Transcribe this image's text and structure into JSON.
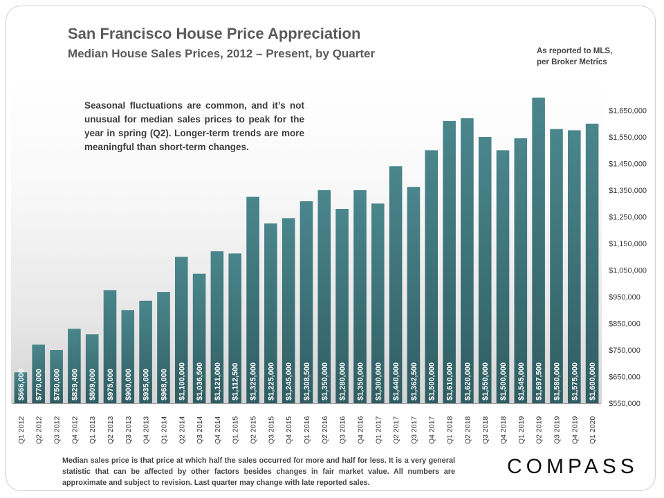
{
  "header": {
    "title": "San Francisco House Price Appreciation",
    "subtitle": "Median House Sales Prices, 2012 – Present, by Quarter",
    "source_line1": "As reported to MLS,",
    "source_line2": "per Broker Metrics"
  },
  "annotation": "Seasonal fluctuations are common, and it’s not unusual for median sales prices to peak for the year in spring (Q2). Longer-term trends are more meaningful than short-term changes.",
  "footnote": "Median sales price is that price at which half the sales occurred for more and half for less. It is a very general statistic that can be affected by other factors besides changes in fair market value. All numbers are approximate and subject to revision. Last quarter may change with late reported sales.",
  "brand": {
    "logo_text": "COMPASS"
  },
  "colors": {
    "bar": "#4a868c",
    "bar_dark": "#2f5d62",
    "label_text": "#ffffff",
    "axis_text": "#333333"
  },
  "chart_data": {
    "type": "bar",
    "title": "San Francisco House Price Appreciation",
    "subtitle": "Median House Sales Prices, 2012 – Present, by Quarter",
    "xlabel": "",
    "ylabel": "",
    "ylim": [
      550000,
      1750000
    ],
    "yticks": [
      550000,
      650000,
      750000,
      850000,
      950000,
      1050000,
      1150000,
      1250000,
      1350000,
      1450000,
      1550000,
      1650000
    ],
    "ytick_labels": [
      "$550,000",
      "$650,000",
      "$750,000",
      "$850,000",
      "$950,000",
      "$1,050,000",
      "$1,150,000",
      "$1,250,000",
      "$1,350,000",
      "$1,450,000",
      "$1,550,000",
      "$1,650,000"
    ],
    "grid": false,
    "categories": [
      "Q1 2012",
      "Q2 2012",
      "Q3 2012",
      "Q4 2012",
      "Q1 2013",
      "Q2 2013",
      "Q3 2013",
      "Q4 2013",
      "Q1 2014",
      "Q2 2014",
      "Q3 2014",
      "Q4 2014",
      "Q1 2015",
      "Q2 2015",
      "Q3 2015",
      "Q4 2015",
      "Q1 2016",
      "Q2 2016",
      "Q3 2016",
      "Q4 2016",
      "Q1 2017",
      "Q2 2017",
      "Q3 2017",
      "Q4 2017",
      "Q1 2018",
      "Q2 2018",
      "Q3 2018",
      "Q4 2018",
      "Q1 2019",
      "Q2 2019",
      "Q3 2019",
      "Q4 2019",
      "Q1 2020"
    ],
    "values": [
      666000,
      770000,
      750000,
      829400,
      809000,
      975000,
      900000,
      935000,
      968000,
      1100000,
      1036500,
      1121000,
      1112500,
      1325000,
      1225000,
      1245000,
      1308500,
      1350000,
      1280000,
      1350000,
      1300000,
      1440000,
      1362500,
      1500000,
      1610000,
      1620000,
      1550000,
      1500000,
      1545000,
      1697500,
      1580000,
      1575000,
      1600000
    ],
    "value_labels": [
      "$666,000",
      "$770,000",
      "$750,000",
      "$829,400",
      "$809,000",
      "$975,000",
      "$900,000",
      "$935,000",
      "$968,000",
      "$1,100,000",
      "$1,036,500",
      "$1,121,000",
      "$1,112,500",
      "$1,325,000",
      "$1,225,000",
      "$1,245,000",
      "$1,308,500",
      "$1,350,000",
      "$1,280,000",
      "$1,350,000",
      "$1,300,000",
      "$1,440,000",
      "$1,362,500",
      "$1,500,000",
      "$1,610,000",
      "$1,620,000",
      "$1,550,000",
      "$1,500,000",
      "$1,545,000",
      "$1,697,500",
      "$1,580,000",
      "$1,575,000",
      "$1,600,000"
    ]
  }
}
